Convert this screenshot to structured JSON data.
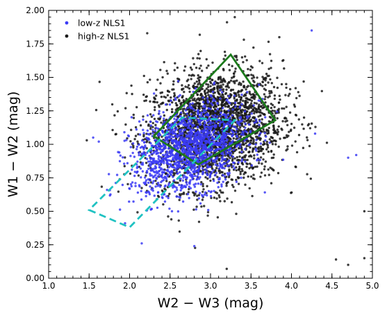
{
  "chart_data": {
    "type": "scatter",
    "xlabel": "W2 − W3 (mag)",
    "ylabel": "W1 − W2 (mag)",
    "xlim": [
      1.0,
      5.0
    ],
    "ylim": [
      0.0,
      2.0
    ],
    "xticks": [
      "1.0",
      "1.5",
      "2.0",
      "2.5",
      "3.0",
      "3.5",
      "4.0",
      "4.5",
      "5.0"
    ],
    "yticks": [
      "0.00",
      "0.25",
      "0.50",
      "0.75",
      "1.00",
      "1.25",
      "1.50",
      "1.75",
      "2.00"
    ],
    "grid": false,
    "legend_position": "top-left",
    "series": [
      {
        "name": "low-z NLS1",
        "color": "#3b3bf5",
        "distribution": {
          "count": 1500,
          "center": [
            2.75,
            0.97
          ],
          "spread": [
            0.36,
            0.17
          ],
          "correlation": 0.35,
          "outliers": [
            [
              1.55,
              1.05
            ],
            [
              1.62,
              1.02
            ],
            [
              2.15,
              0.26
            ],
            [
              4.7,
              0.9
            ],
            [
              4.8,
              0.92
            ],
            [
              4.25,
              1.85
            ],
            [
              2.8,
              0.24
            ]
          ]
        }
      },
      {
        "name": "high-z NLS1",
        "color": "#1a1a1a",
        "distribution": {
          "count": 2600,
          "center": [
            3.05,
            1.12
          ],
          "spread": [
            0.42,
            0.22
          ],
          "correlation": 0.15,
          "outliers": [
            [
              3.3,
              1.95
            ],
            [
              2.05,
              1.22
            ],
            [
              3.85,
              1.8
            ],
            [
              4.55,
              0.14
            ],
            [
              4.9,
              0.15
            ],
            [
              3.2,
              0.07
            ],
            [
              4.7,
              0.1
            ],
            [
              4.9,
              0.5
            ]
          ]
        }
      }
    ],
    "regions": [
      {
        "type": "polygon",
        "style": "solid",
        "color": "#1b7a1b",
        "points": [
          [
            2.3,
            1.06
          ],
          [
            3.25,
            1.67
          ],
          [
            3.8,
            1.18
          ],
          [
            2.85,
            0.85
          ]
        ]
      },
      {
        "type": "polygon",
        "style": "dashed",
        "color": "#20c2c2",
        "points": [
          [
            1.5,
            0.51
          ],
          [
            2.0,
            0.38
          ],
          [
            3.3,
            1.18
          ],
          [
            2.65,
            1.2
          ]
        ]
      }
    ]
  }
}
